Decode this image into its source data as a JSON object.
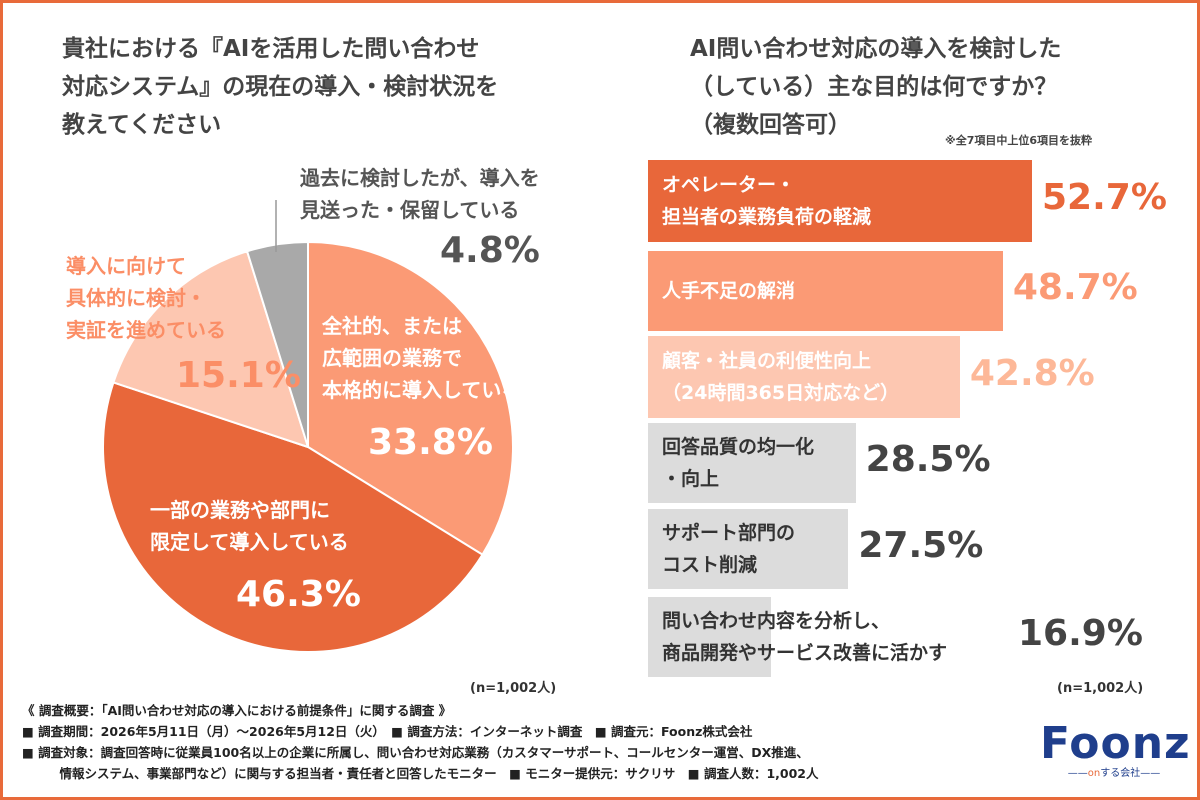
{
  "left_title": "貴社における『AIを活用した問い合わせ\n対応システム』の現在の導入・検討状況を\n教えてください",
  "right_title": "AI問い合わせ対応の導入を検討した\n（している）主な目的は何ですか？\n（複数回答可）",
  "bar_note": "※全7項目中上位6項目を抜粋",
  "pie_n": "(n=1,002人)",
  "bar_n": "(n=1,002人)",
  "colors": {
    "accent": "#e86a3a",
    "frame": "#e86a3a",
    "pie_dark": "#e8673a",
    "pie_mid": "#fb9a75",
    "pie_light": "#fdc7b1",
    "pie_gray": "#a9a9a9",
    "bar_gray": "#dcdcdc"
  },
  "chart_data": [
    {
      "type": "pie",
      "title": "貴社における『AIを活用した問い合わせ対応システム』の現在の導入・検討状況を教えてください",
      "slices": [
        {
          "label": "全社的、または\n広範囲の業務で\n本格的に導入している",
          "value": 33.8,
          "value_text": "33.8%",
          "color": "#fb9a75",
          "text_color": "#ffffff"
        },
        {
          "label": "一部の業務や部門に\n限定して導入している",
          "value": 46.3,
          "value_text": "46.3%",
          "color": "#e8673a",
          "text_color": "#ffffff"
        },
        {
          "label": "導入に向けて\n具体的に検討・\n実証を進めている",
          "value": 15.1,
          "value_text": "15.1%",
          "color": "#fdc7b1",
          "text_color": "#fb8e66"
        },
        {
          "label": "過去に検討したが、導入を\n見送った・保留している",
          "value": 4.8,
          "value_text": "4.8%",
          "color": "#a9a9a9",
          "text_color": "#555555"
        }
      ]
    },
    {
      "type": "bar",
      "orientation": "horizontal",
      "title": "AI問い合わせ対応の導入を検討した（している）主な目的は何ですか？（複数回答可）",
      "categories": [
        "オペレーター・\n担当者の業務負荷の軽減",
        "人手不足の解消",
        "顧客・社員の利便性向上\n（24時間365日対応など）",
        "回答品質の均一化\n・向上",
        "サポート部門の\nコスト削減",
        "問い合わせ内容を分析し、\n商品開発やサービス改善に活かす"
      ],
      "values": [
        52.7,
        48.7,
        42.8,
        28.5,
        27.5,
        16.9
      ],
      "value_texts": [
        "52.7%",
        "48.7%",
        "42.8%",
        "28.5%",
        "27.5%",
        "16.9%"
      ],
      "bar_colors": [
        "#e8673a",
        "#fb9a75",
        "#fdc7b1",
        "#dcdcdc",
        "#dcdcdc",
        "#dcdcdc"
      ],
      "label_colors": [
        "#ffffff",
        "#ffffff",
        "#ffffff",
        "#333333",
        "#333333",
        "#333333"
      ],
      "value_colors": [
        "#e8673a",
        "#fb9a75",
        "#fdb898",
        "#444444",
        "#444444",
        "#444444"
      ]
    }
  ],
  "footer": {
    "line1": "《 調査概要：「AI問い合わせ対応の導入における前提条件」に関する調査 》",
    "line2": "■ 調査期間：2026年5月11日（月）〜2026年5月12日（火）　■ 調査方法：インターネット調査　■ 調査元：Foonz株式会社",
    "line3": "■ 調査対象：調査回答時に従業員100名以上の企業に所属し、問い合わせ対応業務（カスタマーサポート、コールセンター運営、DX推進、",
    "line4": "　　　情報システム、事業部門など）に関与する担当者・責任者と回答したモニター　■ モニター提供元：サクリサ　■ 調査人数：1,002人"
  },
  "logo": {
    "text": "Foonz",
    "sub_dash_left": "——",
    "sub_on": "on",
    "sub_rest": "する会社",
    "sub_dash_right": "——"
  }
}
